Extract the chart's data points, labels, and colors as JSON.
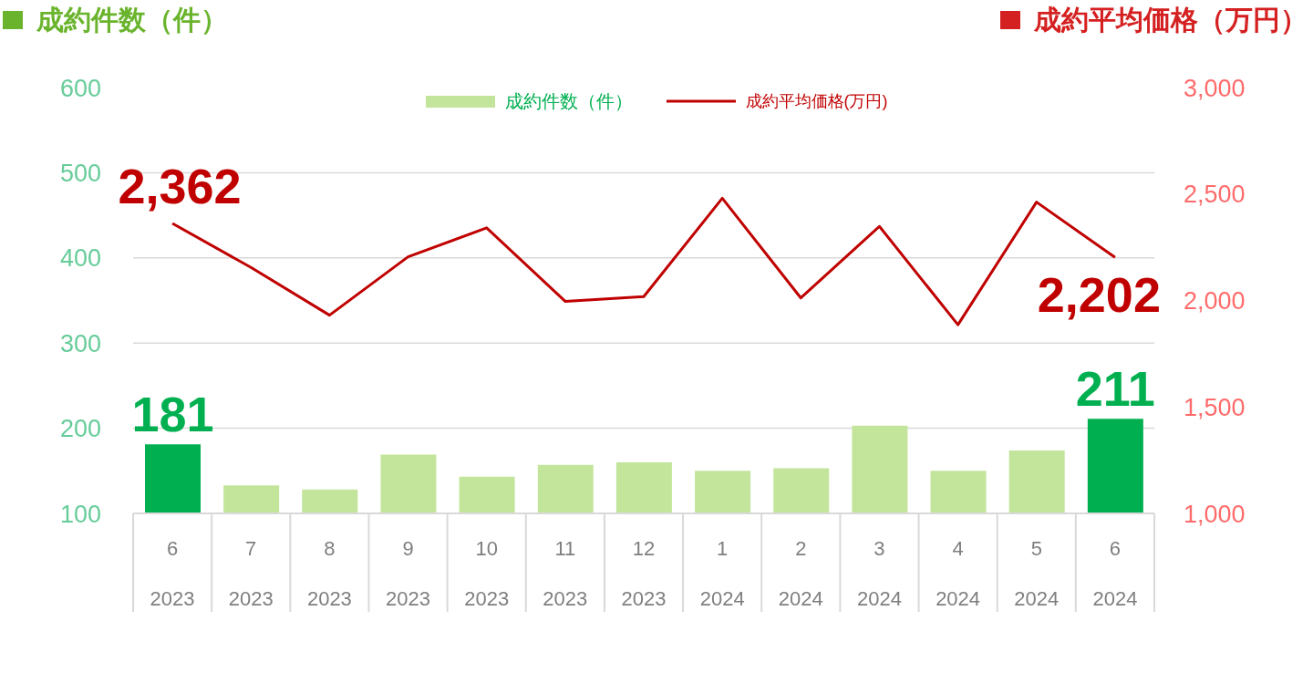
{
  "chart_data": {
    "type": "bar",
    "ylabel": "成約件数（件）",
    "y2label": "成約平均価格（万円）",
    "categories": [
      "6\n2023",
      "7\n2023",
      "8\n2023",
      "9\n2023",
      "10\n2023",
      "11\n2023",
      "12\n2023",
      "1\n2024",
      "2\n2024",
      "3\n2024",
      "4\n2024",
      "5\n2024",
      "6\n2024"
    ],
    "series": [
      {
        "name": "成約件数（件）",
        "color": "#c3e59b",
        "colors": [
          "#00b050",
          "#c3e59b",
          "#c3e59b",
          "#c3e59b",
          "#c3e59b",
          "#c3e59b",
          "#c3e59b",
          "#c3e59b",
          "#c3e59b",
          "#c3e59b",
          "#c3e59b",
          "#c3e59b",
          "#00b050"
        ],
        "values": [
          181,
          133,
          128,
          169,
          143,
          157,
          160,
          150,
          153,
          203,
          150,
          174,
          211
        ],
        "value_labels": [
          "181",
          null,
          null,
          null,
          null,
          null,
          null,
          null,
          null,
          null,
          null,
          null,
          "211"
        ]
      },
      {
        "name": "成約平均価格(万円)",
        "type": "line",
        "axis": "y2",
        "color": "#c00000",
        "values": [
          2362,
          2155,
          1931,
          2205,
          2341,
          1996,
          2018,
          2480,
          2012,
          2348,
          1886,
          2462,
          2202
        ],
        "value_labels": [
          "2,362",
          null,
          null,
          null,
          null,
          null,
          null,
          null,
          null,
          null,
          null,
          null,
          "2,202"
        ]
      }
    ],
    "ylim": [
      100,
      600
    ],
    "yticks": [
      100,
      200,
      300,
      400,
      500,
      600
    ],
    "y2lim": [
      1000,
      3000
    ],
    "y2ticks": [
      {
        "value": 1000,
        "label": "1,000"
      },
      {
        "value": 1500,
        "label": "1,500"
      },
      {
        "value": 2000,
        "label": "2,000"
      },
      {
        "value": 2500,
        "label": "2,500"
      },
      {
        "value": 3000,
        "label": "3,000"
      }
    ],
    "grid": "y",
    "legend": "top"
  }
}
